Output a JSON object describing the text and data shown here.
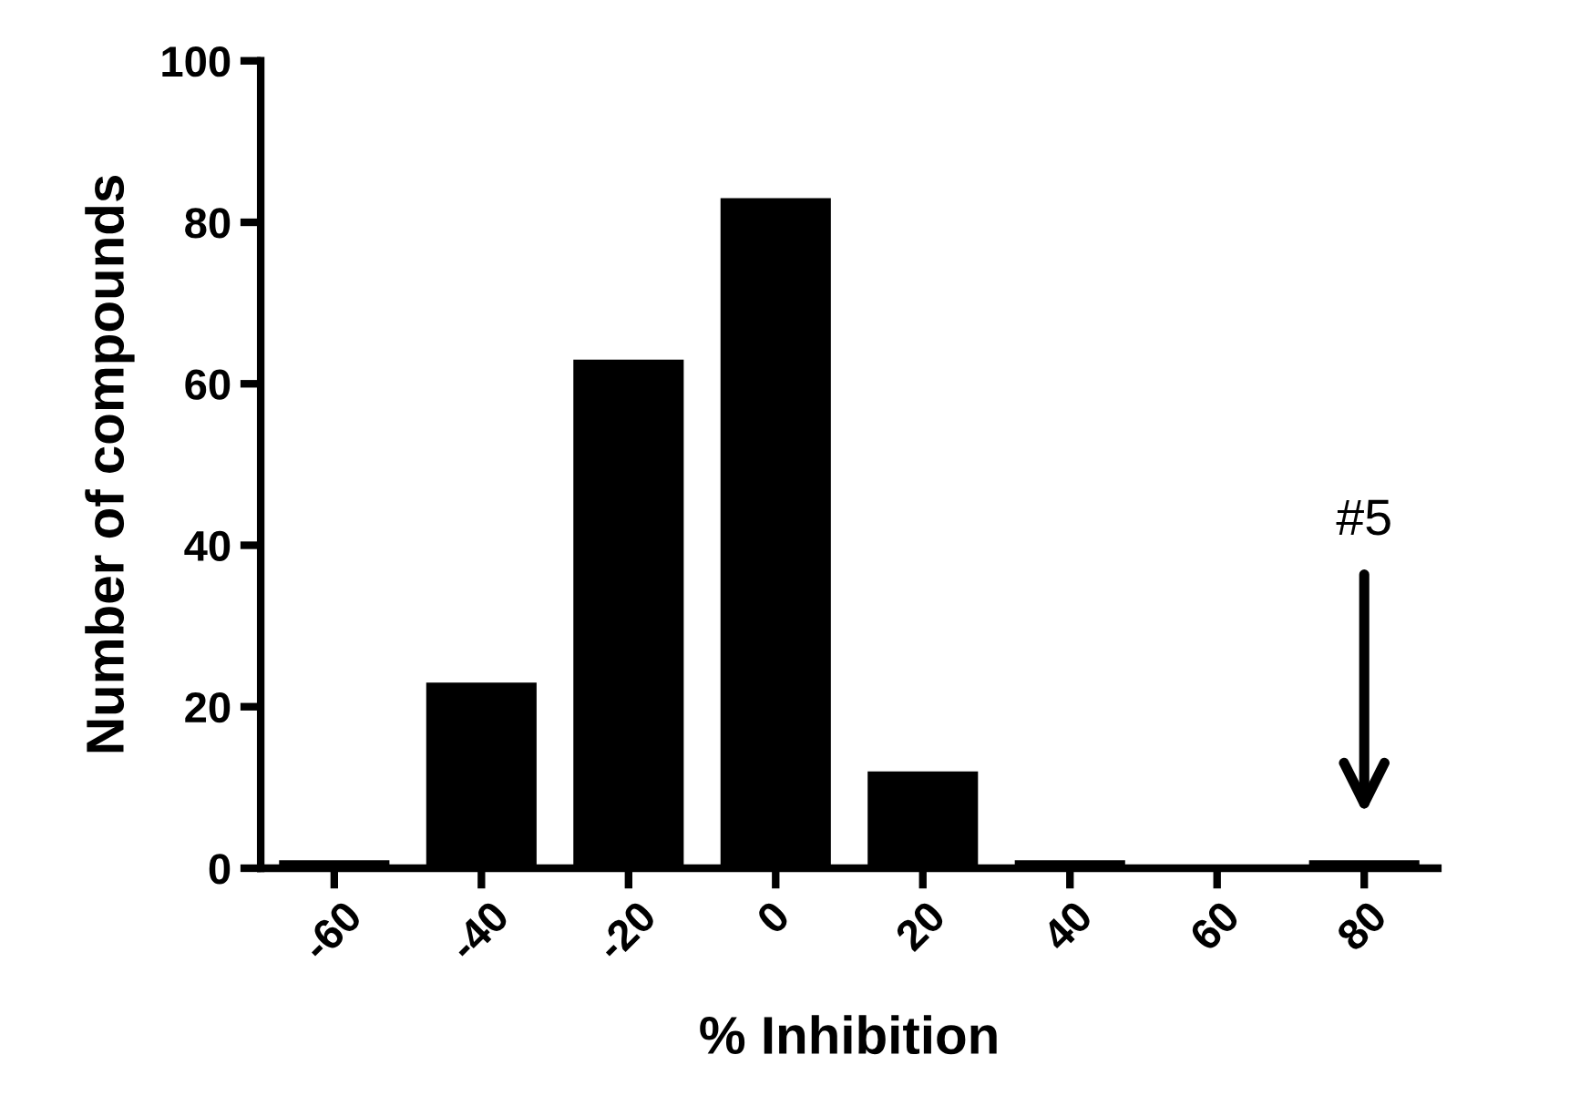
{
  "chart_data": {
    "type": "bar",
    "xlabel": "% Inhibition",
    "ylabel": "Number of compounds",
    "categories": [
      "-60",
      "-40",
      "-20",
      "0",
      "20",
      "40",
      "60",
      "80"
    ],
    "values": [
      1,
      23,
      63,
      83,
      12,
      1,
      0,
      1
    ],
    "color": "#000000",
    "ylim": [
      0,
      100
    ],
    "yticks": [
      0,
      20,
      40,
      60,
      80,
      100
    ],
    "grid": false,
    "annotations": [
      "#5"
    ]
  }
}
